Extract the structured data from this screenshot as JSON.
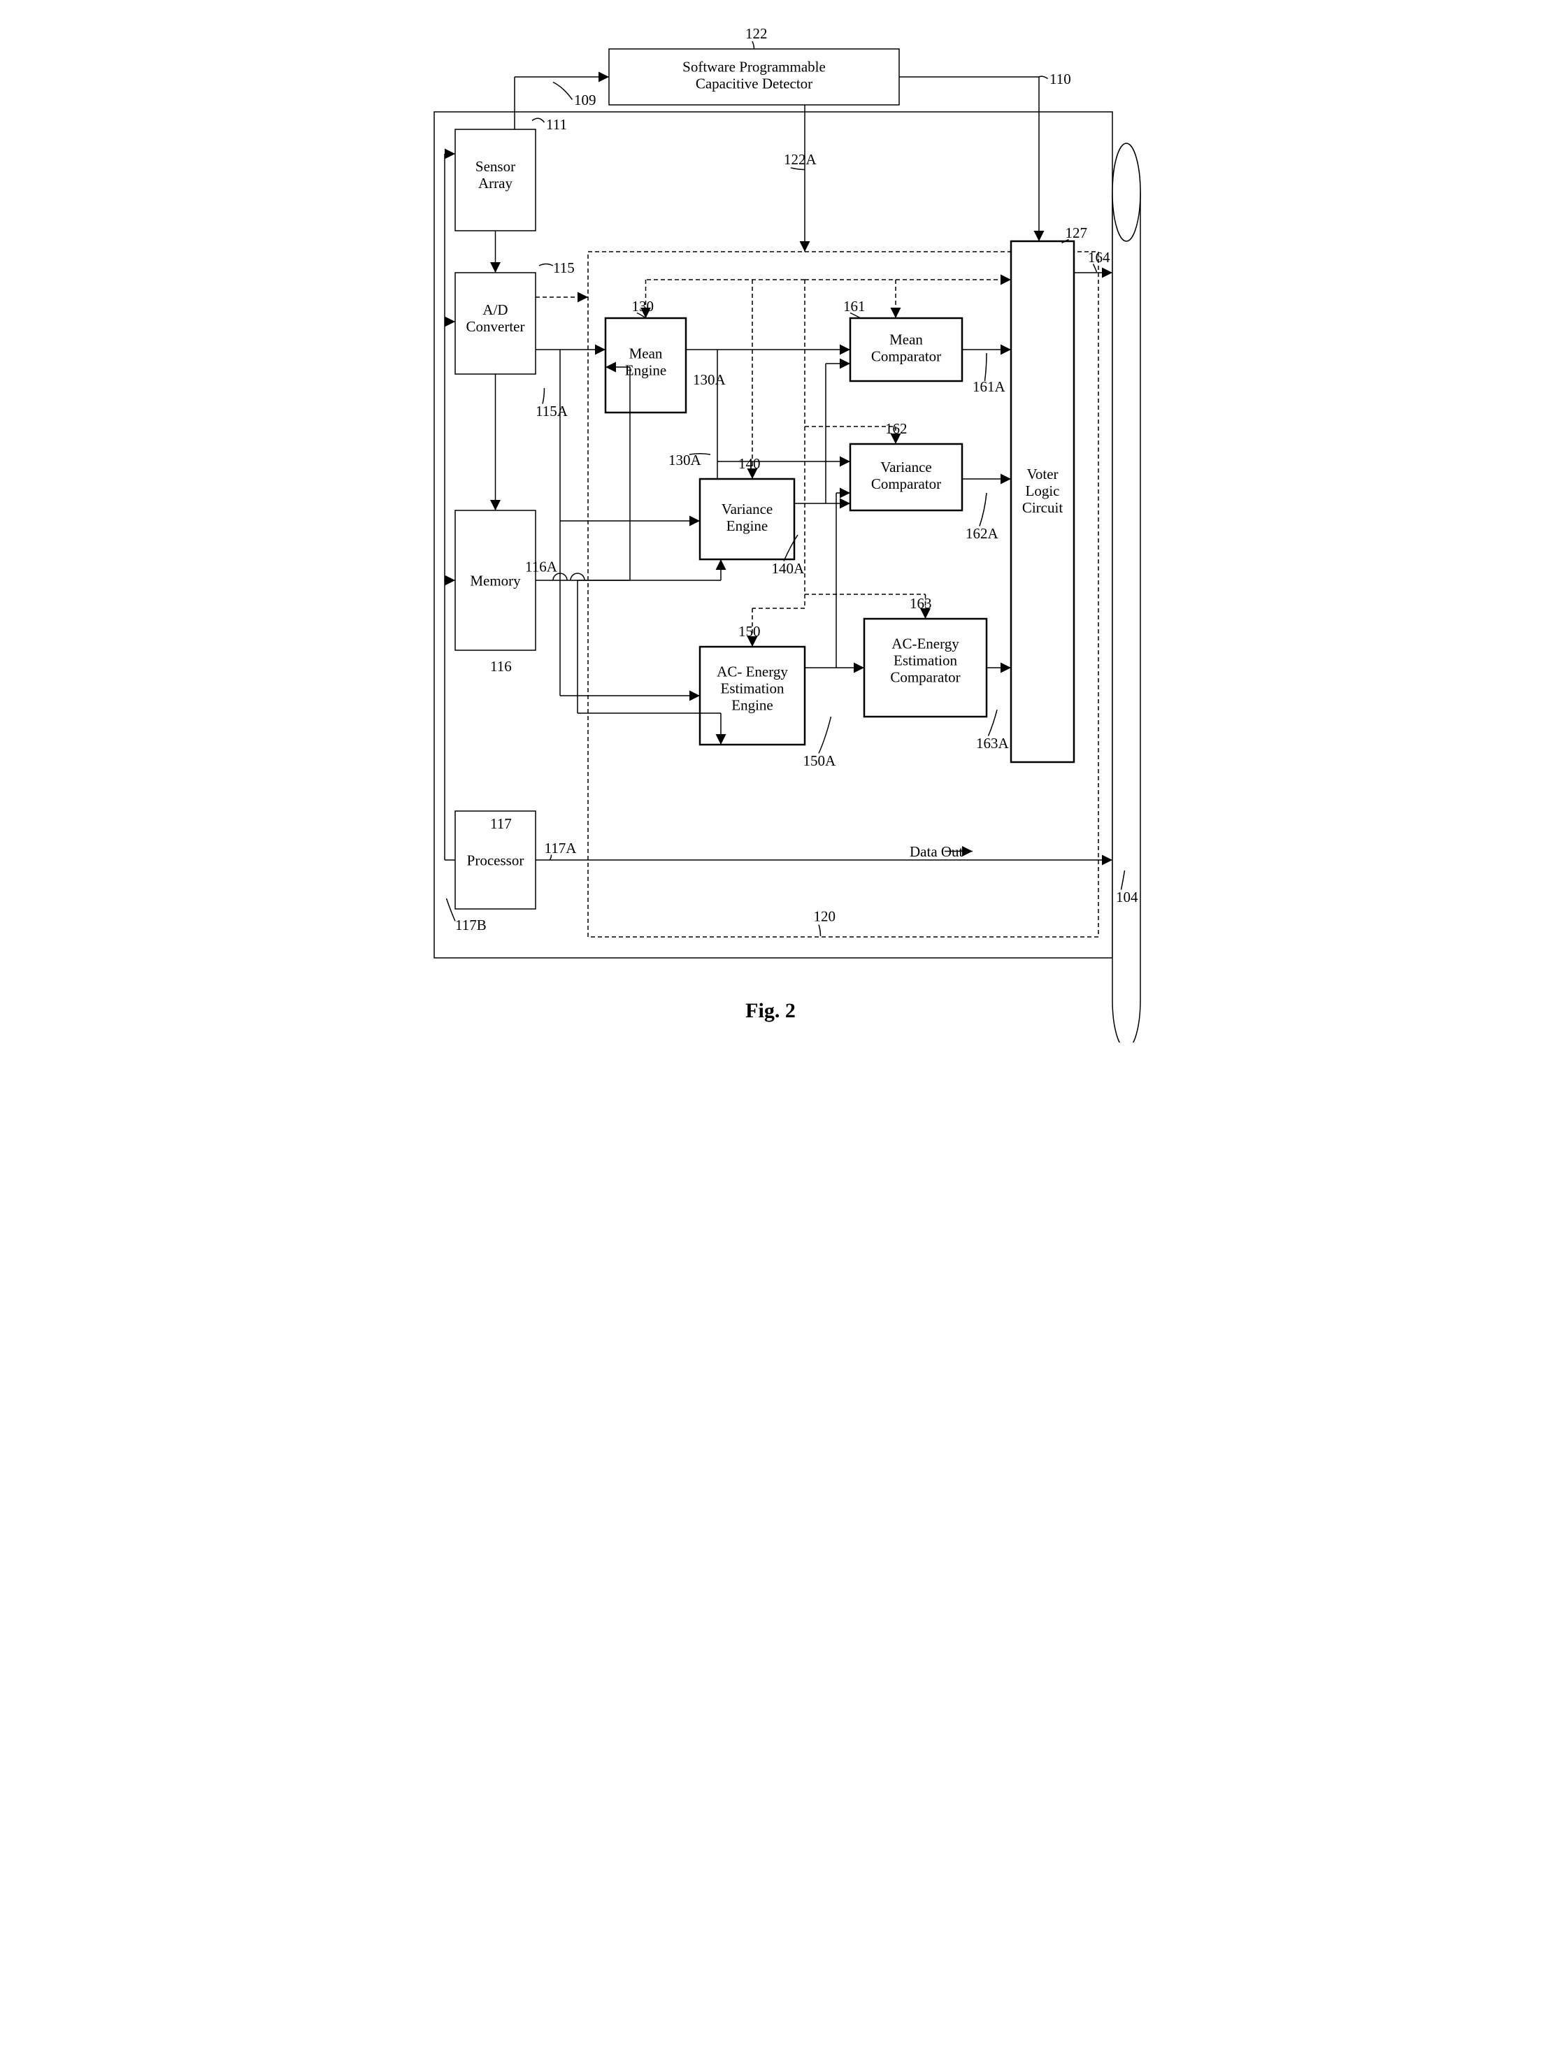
{
  "figure_label": "Fig. 2",
  "boxes": {
    "sensor_array": {
      "label": "Sensor\nArray",
      "ref": "111"
    },
    "spcd": {
      "label": "Software Programmable\nCapacitive Detector",
      "ref": "122"
    },
    "ad_converter": {
      "label": "A/D\nConverter",
      "ref": "115"
    },
    "memory": {
      "label": "Memory",
      "ref": "116"
    },
    "processor": {
      "label": "Processor",
      "ref": "117"
    },
    "mean_engine": {
      "label": "Mean\nEngine",
      "ref": "130"
    },
    "variance_engine": {
      "label": "Variance\nEngine",
      "ref": "140"
    },
    "ac_energy_engine": {
      "label": "AC- Energy\nEstimation\nEngine",
      "ref": "150"
    },
    "mean_comparator": {
      "label": "Mean\nComparator",
      "ref": "161"
    },
    "variance_comparator": {
      "label": "Variance\nComparator",
      "ref": "162"
    },
    "ac_energy_comparator": {
      "label": "AC-Energy\nEstimation\nComparator",
      "ref": "163"
    },
    "voter_logic": {
      "label": "Voter\nLogic\nCircuit",
      "ref": "127"
    }
  },
  "signals": {
    "spcd_out": "122A",
    "line_109": "109",
    "line_110": "110",
    "ad_out": "115A",
    "memory_out": "116A",
    "processor_out_a": "117A",
    "processor_out_b": "117B",
    "mean_engine_out": "130A",
    "mean_engine_out2": "130A",
    "variance_engine_out": "140A",
    "ac_energy_engine_out": "150A",
    "mean_comp_out": "161A",
    "variance_comp_out": "162A",
    "ac_energy_comp_out": "163A",
    "voter_out": "164",
    "proc_region": "120",
    "bus": "104",
    "data_out": "Data Out"
  },
  "style": {
    "bg": "#ffffff",
    "stroke": "#000000",
    "box_stroke_w": 3,
    "thick_stroke_w": 5,
    "dash": "12,8",
    "font_size": 42,
    "fig_font_size": 60,
    "font_family": "Times New Roman"
  }
}
